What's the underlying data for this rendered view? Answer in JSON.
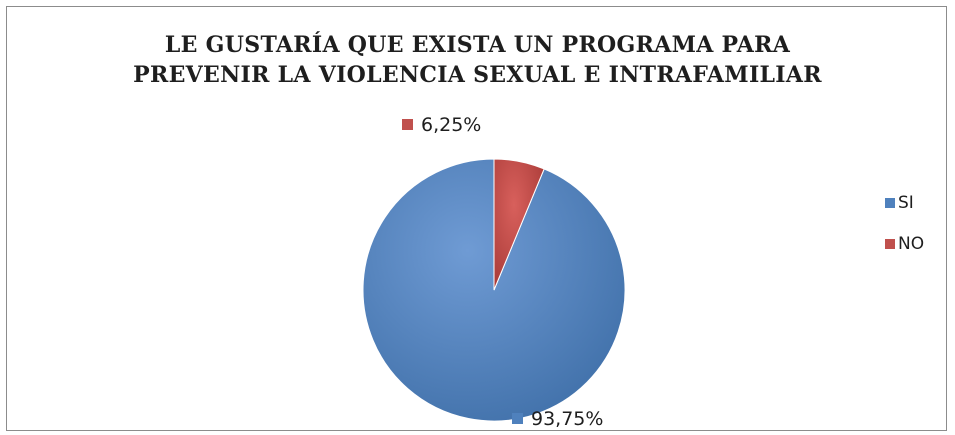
{
  "chart_data": {
    "type": "pie",
    "title_lines": [
      "LE GUSTARÍA QUE EXISTA UN PROGRAMA PARA",
      "PREVENIR LA VIOLENCIA SEXUAL E INTRAFAMILIAR"
    ],
    "categories": [
      "SI",
      "NO"
    ],
    "values": [
      93.75,
      6.25
    ],
    "data_labels": [
      "93,75%",
      "6,25%"
    ],
    "colors": [
      "#4f81bd",
      "#c0504d"
    ],
    "legend_placement": "right"
  }
}
